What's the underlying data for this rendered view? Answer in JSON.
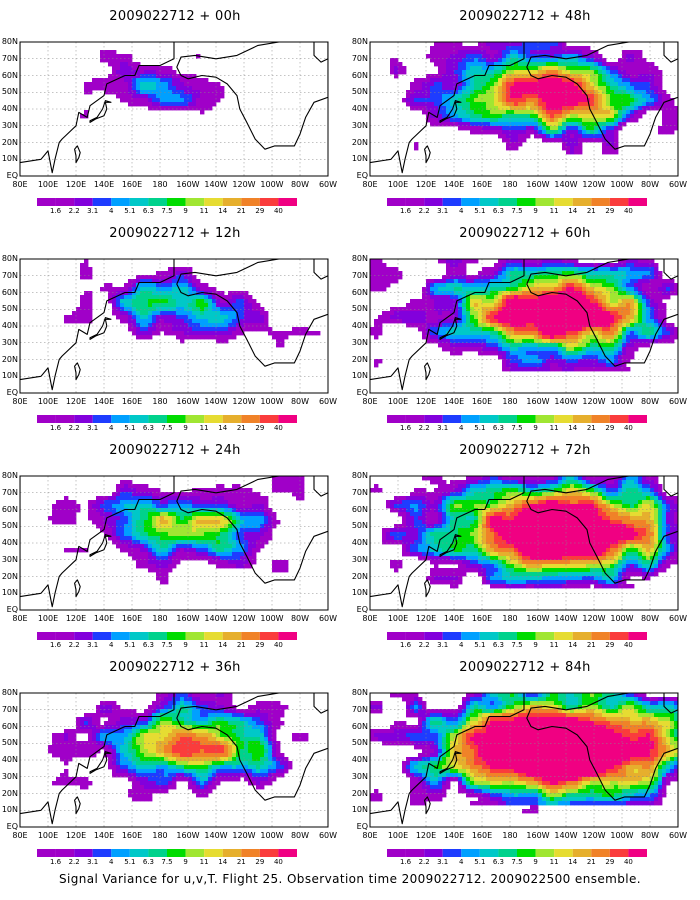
{
  "panels": [
    {
      "title": "2009022712 + 00h",
      "lead_hours": 0
    },
    {
      "title": "2009022712 + 12h",
      "lead_hours": 12
    },
    {
      "title": "2009022712 + 24h",
      "lead_hours": 24
    },
    {
      "title": "2009022712 + 36h",
      "lead_hours": 36
    },
    {
      "title": "2009022712 + 48h",
      "lead_hours": 48
    },
    {
      "title": "2009022712 + 60h",
      "lead_hours": 60
    },
    {
      "title": "2009022712 + 72h",
      "lead_hours": 72
    },
    {
      "title": "2009022712 + 84h",
      "lead_hours": 84
    }
  ],
  "lat_labels": [
    "80N",
    "70N",
    "60N",
    "50N",
    "40N",
    "30N",
    "20N",
    "10N",
    "EQ"
  ],
  "lon_labels": [
    "80E",
    "100E",
    "120E",
    "140E",
    "160E",
    "180",
    "160W",
    "140W",
    "120W",
    "100W",
    "80W",
    "60W"
  ],
  "colorbar": {
    "levels": [
      "1.6",
      "2.2",
      "3.1",
      "4",
      "5.1",
      "6.3",
      "7.5",
      "9",
      "11",
      "14",
      "21",
      "29",
      "40"
    ],
    "colors": [
      "#a000c8",
      "#8200dc",
      "#1e3cff",
      "#00a0ff",
      "#00c8c8",
      "#00d28c",
      "#00dc00",
      "#a0e632",
      "#e6dc32",
      "#e6af2d",
      "#f08228",
      "#fa3c3c",
      "#f00082"
    ]
  },
  "caption": "Signal Variance for u,v,T. Flight 25. Observation time 2009022712. 2009022500 ensemble."
}
